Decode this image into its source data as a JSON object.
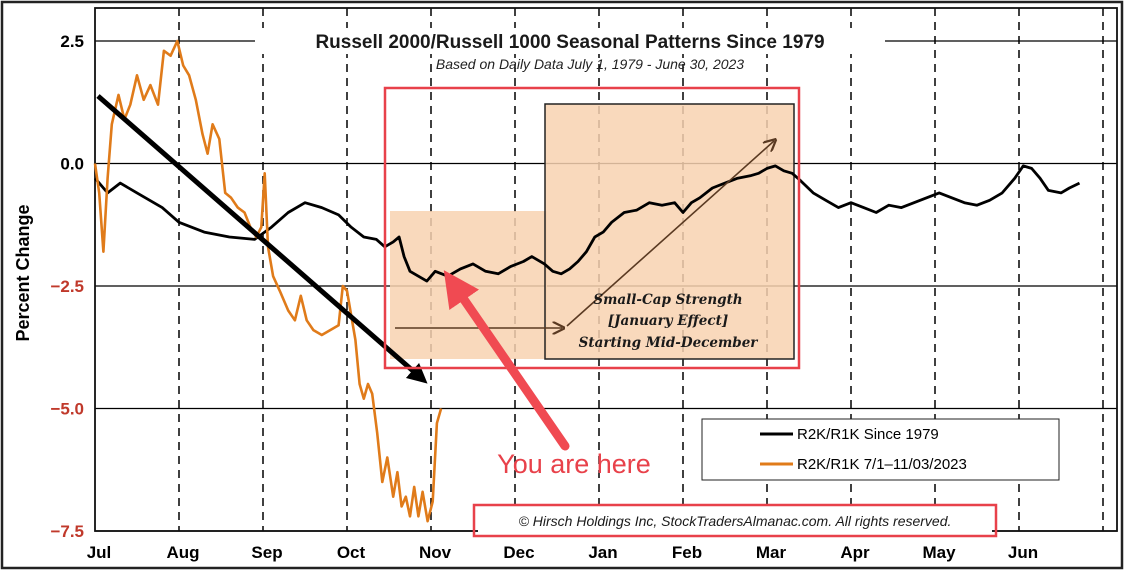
{
  "chart_data": {
    "type": "line",
    "title": "Russell 2000/Russell 1000 Seasonal Patterns Since 1979",
    "subtitle": "Based on Daily Data July 1, 1979 - June 30, 2023",
    "ylabel": "Percent Change",
    "ylim": [
      -7.5,
      2.5
    ],
    "yticks": [
      "2.5",
      "0.0",
      "−2.5",
      "−5.0",
      "−7.5"
    ],
    "months": [
      "Jul",
      "Aug",
      "Sep",
      "Oct",
      "Nov",
      "Dec",
      "Jan",
      "Feb",
      "Mar",
      "Apr",
      "May",
      "Jun"
    ],
    "x_domain": [
      0,
      12
    ],
    "series": [
      {
        "name": "R2K/R1K Since 1979",
        "color": "#000000",
        "points": [
          [
            0,
            -0.3
          ],
          [
            0.15,
            -0.6
          ],
          [
            0.3,
            -0.4
          ],
          [
            0.5,
            -0.6
          ],
          [
            0.8,
            -0.9
          ],
          [
            1.0,
            -1.2
          ],
          [
            1.3,
            -1.4
          ],
          [
            1.6,
            -1.5
          ],
          [
            1.9,
            -1.55
          ],
          [
            2.1,
            -1.3
          ],
          [
            2.3,
            -1.0
          ],
          [
            2.5,
            -0.8
          ],
          [
            2.7,
            -0.9
          ],
          [
            2.9,
            -1.05
          ],
          [
            3.05,
            -1.3
          ],
          [
            3.2,
            -1.5
          ],
          [
            3.35,
            -1.55
          ],
          [
            3.45,
            -1.7
          ],
          [
            3.55,
            -1.6
          ],
          [
            3.62,
            -1.5
          ],
          [
            3.68,
            -1.9
          ],
          [
            3.75,
            -2.2
          ],
          [
            3.85,
            -2.3
          ],
          [
            3.95,
            -2.4
          ],
          [
            4.05,
            -2.2
          ],
          [
            4.2,
            -2.3
          ],
          [
            4.35,
            -2.15
          ],
          [
            4.5,
            -2.05
          ],
          [
            4.65,
            -2.2
          ],
          [
            4.8,
            -2.25
          ],
          [
            4.95,
            -2.1
          ],
          [
            5.1,
            -2.0
          ],
          [
            5.2,
            -1.9
          ],
          [
            5.35,
            -2.05
          ],
          [
            5.45,
            -2.2
          ],
          [
            5.55,
            -2.25
          ],
          [
            5.65,
            -2.15
          ],
          [
            5.75,
            -2.0
          ],
          [
            5.85,
            -1.8
          ],
          [
            5.95,
            -1.5
          ],
          [
            6.05,
            -1.4
          ],
          [
            6.15,
            -1.2
          ],
          [
            6.3,
            -1.0
          ],
          [
            6.45,
            -0.95
          ],
          [
            6.6,
            -0.8
          ],
          [
            6.75,
            -0.85
          ],
          [
            6.9,
            -0.8
          ],
          [
            7.0,
            -1.0
          ],
          [
            7.1,
            -0.8
          ],
          [
            7.2,
            -0.7
          ],
          [
            7.35,
            -0.5
          ],
          [
            7.5,
            -0.4
          ],
          [
            7.65,
            -0.3
          ],
          [
            7.8,
            -0.25
          ],
          [
            7.9,
            -0.2
          ],
          [
            8.0,
            -0.1
          ],
          [
            8.1,
            -0.05
          ],
          [
            8.2,
            -0.15
          ],
          [
            8.3,
            -0.2
          ],
          [
            8.4,
            -0.35
          ],
          [
            8.55,
            -0.6
          ],
          [
            8.7,
            -0.75
          ],
          [
            8.85,
            -0.9
          ],
          [
            9.0,
            -0.8
          ],
          [
            9.15,
            -0.9
          ],
          [
            9.3,
            -1.0
          ],
          [
            9.45,
            -0.85
          ],
          [
            9.6,
            -0.9
          ],
          [
            9.75,
            -0.8
          ],
          [
            9.9,
            -0.7
          ],
          [
            10.05,
            -0.6
          ],
          [
            10.2,
            -0.7
          ],
          [
            10.35,
            -0.8
          ],
          [
            10.5,
            -0.85
          ],
          [
            10.65,
            -0.75
          ],
          [
            10.8,
            -0.6
          ],
          [
            10.95,
            -0.3
          ],
          [
            11.05,
            -0.05
          ],
          [
            11.15,
            -0.1
          ],
          [
            11.25,
            -0.3
          ],
          [
            11.35,
            -0.55
          ],
          [
            11.5,
            -0.6
          ],
          [
            11.6,
            -0.5
          ],
          [
            11.72,
            -0.4
          ]
        ]
      },
      {
        "name": "R2K/R1K 7/1–11/03/2023",
        "color": "#e07b1a",
        "points": [
          [
            0,
            0.0
          ],
          [
            0.05,
            -0.6
          ],
          [
            0.1,
            -1.8
          ],
          [
            0.15,
            -0.3
          ],
          [
            0.2,
            0.8
          ],
          [
            0.28,
            1.4
          ],
          [
            0.35,
            0.9
          ],
          [
            0.42,
            1.2
          ],
          [
            0.5,
            1.8
          ],
          [
            0.58,
            1.3
          ],
          [
            0.66,
            1.6
          ],
          [
            0.75,
            1.2
          ],
          [
            0.82,
            2.3
          ],
          [
            0.9,
            2.2
          ],
          [
            0.98,
            2.5
          ],
          [
            1.05,
            2.0
          ],
          [
            1.12,
            1.8
          ],
          [
            1.2,
            1.3
          ],
          [
            1.28,
            0.6
          ],
          [
            1.34,
            0.2
          ],
          [
            1.4,
            0.8
          ],
          [
            1.48,
            0.5
          ],
          [
            1.55,
            -0.6
          ],
          [
            1.62,
            -0.7
          ],
          [
            1.7,
            -0.9
          ],
          [
            1.78,
            -1.0
          ],
          [
            1.85,
            -1.3
          ],
          [
            1.92,
            -1.5
          ],
          [
            1.98,
            -1.3
          ],
          [
            2.02,
            -0.2
          ],
          [
            2.06,
            -1.7
          ],
          [
            2.12,
            -2.3
          ],
          [
            2.2,
            -2.6
          ],
          [
            2.3,
            -3.0
          ],
          [
            2.38,
            -3.2
          ],
          [
            2.45,
            -2.7
          ],
          [
            2.52,
            -3.2
          ],
          [
            2.6,
            -3.4
          ],
          [
            2.7,
            -3.5
          ],
          [
            2.8,
            -3.4
          ],
          [
            2.9,
            -3.3
          ],
          [
            2.95,
            -2.5
          ],
          [
            3.0,
            -2.6
          ],
          [
            3.05,
            -3.1
          ],
          [
            3.1,
            -3.6
          ],
          [
            3.15,
            -4.5
          ],
          [
            3.2,
            -4.8
          ],
          [
            3.25,
            -4.5
          ],
          [
            3.3,
            -4.7
          ],
          [
            3.36,
            -5.5
          ],
          [
            3.42,
            -6.5
          ],
          [
            3.48,
            -6.0
          ],
          [
            3.55,
            -6.8
          ],
          [
            3.6,
            -6.3
          ],
          [
            3.65,
            -7.0
          ],
          [
            3.7,
            -6.8
          ],
          [
            3.75,
            -7.2
          ],
          [
            3.8,
            -6.6
          ],
          [
            3.85,
            -7.2
          ],
          [
            3.9,
            -6.7
          ],
          [
            3.96,
            -7.3
          ],
          [
            4.02,
            -6.9
          ],
          [
            4.07,
            -5.3
          ],
          [
            4.12,
            -5.0
          ]
        ]
      }
    ],
    "arrow_direction": "down-right",
    "shaded_region_label": "Small-Cap Strength",
    "shaded_region_label_2": "[January Effect]",
    "shaded_region_label_3": "Starting Mid-December",
    "annotation": "You are here",
    "copyright": "© Hirsch Holdings Inc, StockTradersAlmanac.com. All rights reserved.",
    "legend_placement": "bottom-right",
    "grid": "horizontal solid lines at 2.5 intervals, vertical dashed lines at month boundaries"
  }
}
